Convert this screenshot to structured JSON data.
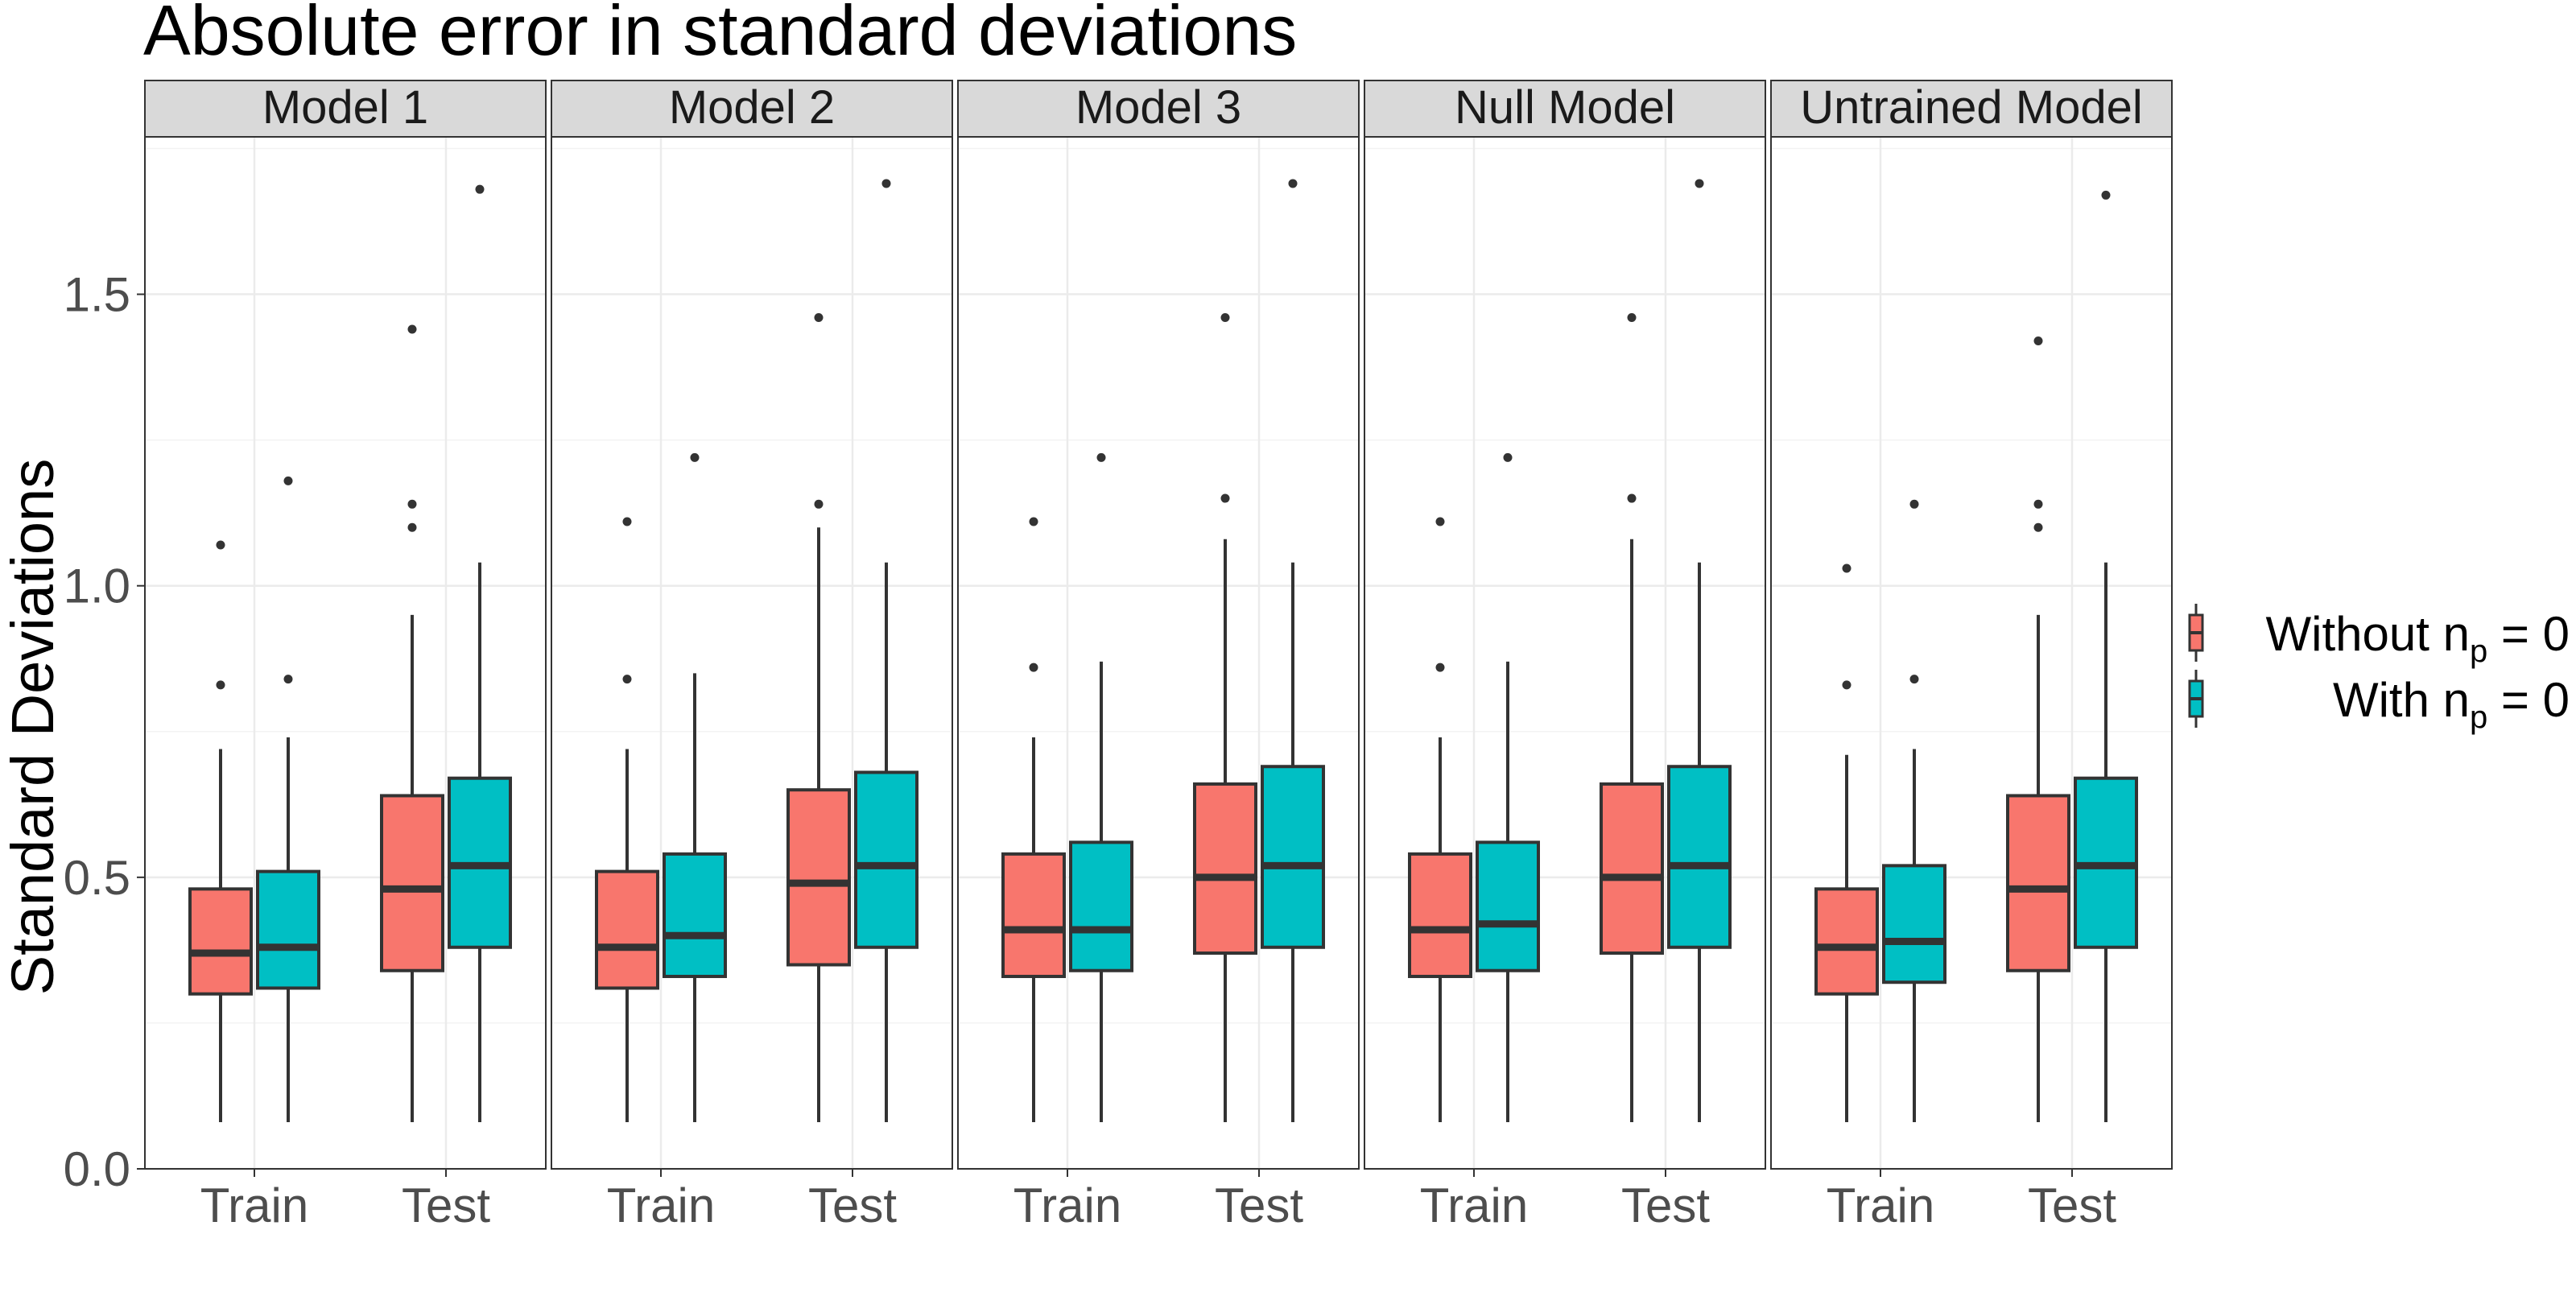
{
  "chart_data": {
    "type": "boxplot",
    "title": "Absolute error in standard deviations",
    "ylabel": "Standard Deviations",
    "xlabel": "",
    "ylim": [
      0,
      1.77
    ],
    "yticks": [
      0.0,
      0.5,
      1.0,
      1.5
    ],
    "ytick_labels": [
      "0.0",
      "0.5",
      "1.0",
      "1.5"
    ],
    "categories": [
      "Train",
      "Test"
    ],
    "grid": true,
    "legend_position": "right",
    "colors": {
      "Without": "#F8766D",
      "With": "#00BFC4",
      "strip_bg": "#D9D9D9",
      "grid": "#EBEBEB",
      "outline": "#333333"
    },
    "series": [
      {
        "key": "Without",
        "legend_prefix": "Without",
        "legend_sub_base": "n",
        "legend_sub": "p",
        "legend_suffix": " = 0"
      },
      {
        "key": "With",
        "legend_prefix": "With",
        "legend_sub_base": "n",
        "legend_sub": "p",
        "legend_suffix": " = 0"
      }
    ],
    "panels": [
      {
        "name": "Model 1",
        "boxes": {
          "Train": {
            "Without": {
              "lower": 0.08,
              "q1": 0.3,
              "median": 0.37,
              "q3": 0.48,
              "upper": 0.72,
              "outliers": [
                0.83,
                1.07
              ]
            },
            "With": {
              "lower": 0.08,
              "q1": 0.31,
              "median": 0.38,
              "q3": 0.51,
              "upper": 0.74,
              "outliers": [
                0.84,
                1.18
              ]
            }
          },
          "Test": {
            "Without": {
              "lower": 0.08,
              "q1": 0.34,
              "median": 0.48,
              "q3": 0.64,
              "upper": 0.95,
              "outliers": [
                1.1,
                1.14,
                1.44
              ]
            },
            "With": {
              "lower": 0.08,
              "q1": 0.38,
              "median": 0.52,
              "q3": 0.67,
              "upper": 1.04,
              "outliers": [
                1.68
              ]
            }
          }
        }
      },
      {
        "name": "Model 2",
        "boxes": {
          "Train": {
            "Without": {
              "lower": 0.08,
              "q1": 0.31,
              "median": 0.38,
              "q3": 0.51,
              "upper": 0.72,
              "outliers": [
                0.84,
                1.11
              ]
            },
            "With": {
              "lower": 0.08,
              "q1": 0.33,
              "median": 0.4,
              "q3": 0.54,
              "upper": 0.85,
              "outliers": [
                1.22
              ]
            }
          },
          "Test": {
            "Without": {
              "lower": 0.08,
              "q1": 0.35,
              "median": 0.49,
              "q3": 0.65,
              "upper": 1.1,
              "outliers": [
                1.14,
                1.46
              ]
            },
            "With": {
              "lower": 0.08,
              "q1": 0.38,
              "median": 0.52,
              "q3": 0.68,
              "upper": 1.04,
              "outliers": [
                1.69
              ]
            }
          }
        }
      },
      {
        "name": "Model 3",
        "boxes": {
          "Train": {
            "Without": {
              "lower": 0.08,
              "q1": 0.33,
              "median": 0.41,
              "q3": 0.54,
              "upper": 0.74,
              "outliers": [
                0.86,
                1.11
              ]
            },
            "With": {
              "lower": 0.08,
              "q1": 0.34,
              "median": 0.41,
              "q3": 0.56,
              "upper": 0.87,
              "outliers": [
                1.22
              ]
            }
          },
          "Test": {
            "Without": {
              "lower": 0.08,
              "q1": 0.37,
              "median": 0.5,
              "q3": 0.66,
              "upper": 1.08,
              "outliers": [
                1.15,
                1.46
              ]
            },
            "With": {
              "lower": 0.08,
              "q1": 0.38,
              "median": 0.52,
              "q3": 0.69,
              "upper": 1.04,
              "outliers": [
                1.69
              ]
            }
          }
        }
      },
      {
        "name": "Null Model",
        "boxes": {
          "Train": {
            "Without": {
              "lower": 0.08,
              "q1": 0.33,
              "median": 0.41,
              "q3": 0.54,
              "upper": 0.74,
              "outliers": [
                0.86,
                1.11
              ]
            },
            "With": {
              "lower": 0.08,
              "q1": 0.34,
              "median": 0.42,
              "q3": 0.56,
              "upper": 0.87,
              "outliers": [
                1.22
              ]
            }
          },
          "Test": {
            "Without": {
              "lower": 0.08,
              "q1": 0.37,
              "median": 0.5,
              "q3": 0.66,
              "upper": 1.08,
              "outliers": [
                1.15,
                1.46
              ]
            },
            "With": {
              "lower": 0.08,
              "q1": 0.38,
              "median": 0.52,
              "q3": 0.69,
              "upper": 1.04,
              "outliers": [
                1.69
              ]
            }
          }
        }
      },
      {
        "name": "Untrained Model",
        "boxes": {
          "Train": {
            "Without": {
              "lower": 0.08,
              "q1": 0.3,
              "median": 0.38,
              "q3": 0.48,
              "upper": 0.71,
              "outliers": [
                0.83,
                1.03
              ]
            },
            "With": {
              "lower": 0.08,
              "q1": 0.32,
              "median": 0.39,
              "q3": 0.52,
              "upper": 0.72,
              "outliers": [
                0.84,
                1.14
              ]
            }
          },
          "Test": {
            "Without": {
              "lower": 0.08,
              "q1": 0.34,
              "median": 0.48,
              "q3": 0.64,
              "upper": 0.95,
              "outliers": [
                1.1,
                1.14,
                1.42
              ]
            },
            "With": {
              "lower": 0.08,
              "q1": 0.38,
              "median": 0.52,
              "q3": 0.67,
              "upper": 1.04,
              "outliers": [
                1.67
              ]
            }
          }
        }
      }
    ]
  }
}
